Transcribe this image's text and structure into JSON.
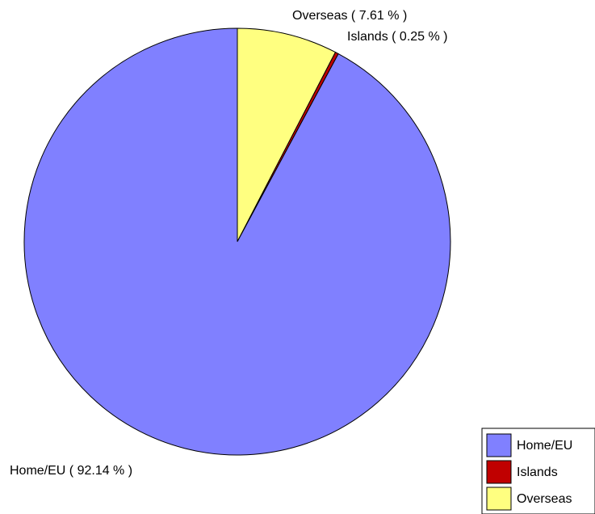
{
  "chart_data": {
    "type": "pie",
    "title": "",
    "slices": [
      {
        "label": "Home/EU",
        "value": 92.14,
        "color": "#8080ff",
        "display": "Home/EU ( 92.14 % )"
      },
      {
        "label": "Islands",
        "value": 0.25,
        "color": "#c00000",
        "display": "Islands ( 0.25 % )"
      },
      {
        "label": "Overseas",
        "value": 7.61,
        "color": "#ffff80",
        "display": "Overseas ( 7.61 % )"
      }
    ],
    "legend": {
      "placement": "bottom-right",
      "entries": [
        "Home/EU",
        "Islands",
        "Overseas"
      ]
    }
  }
}
